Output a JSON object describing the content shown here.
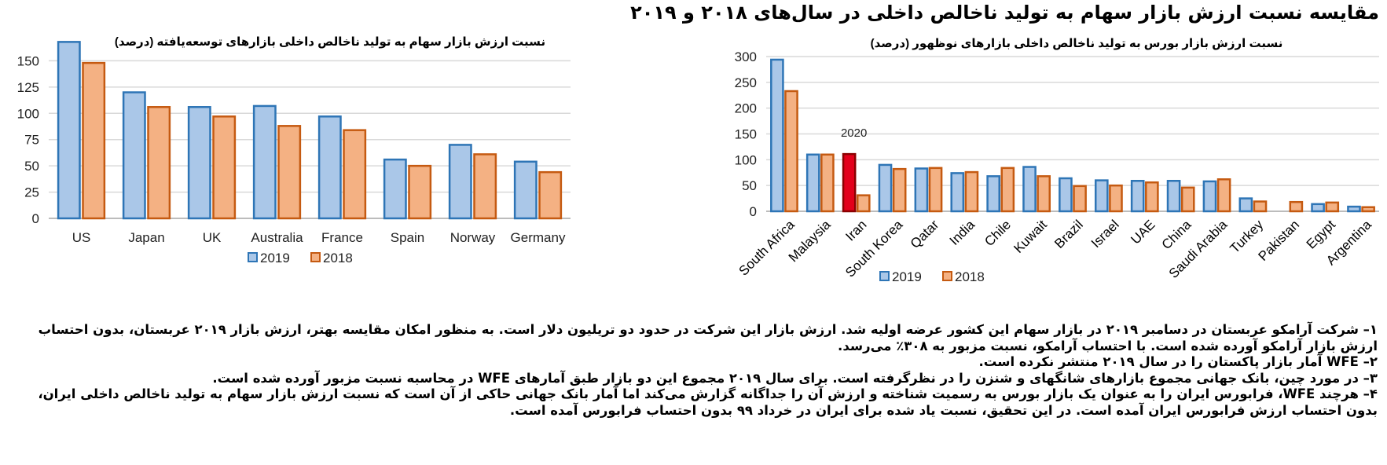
{
  "main_title": "مقایسه نسبت ارزش بازار سهام به تولید ناخالص داخلی در سال‌های ۲۰۱۸ و ۲۰۱۹",
  "colors": {
    "series_2019_fill": "#aac7e8",
    "series_2019_stroke": "#2e75b6",
    "series_2018_fill": "#f4b183",
    "series_2018_stroke": "#c55a11",
    "highlight_fill": "#e3001b",
    "highlight_stroke": "#8b0000",
    "grid": "#d9d9d9"
  },
  "chart_data": [
    {
      "type": "bar",
      "title": "نسبت ارزش بازار سهام به تولید ناخالص داخلی بازارهای توسعه‌یافته (درصد)",
      "categories": [
        "US",
        "Japan",
        "UK",
        "Australia",
        "France",
        "Spain",
        "Norway",
        "Germany"
      ],
      "series": [
        {
          "name": "2019",
          "values": [
            168,
            120,
            106,
            107,
            97,
            56,
            70,
            54
          ]
        },
        {
          "name": "2018",
          "values": [
            148,
            106,
            97,
            88,
            84,
            50,
            61,
            44
          ]
        }
      ],
      "ylim": [
        0,
        175
      ],
      "yticks": [
        0,
        25,
        50,
        75,
        100,
        125,
        150
      ],
      "grid": true,
      "legend_position": "bottom-center"
    },
    {
      "type": "bar",
      "title": "نسبت ارزش بازار بورس به تولید ناخالص داخلی بازارهای نوظهور (درصد)",
      "categories": [
        "South Africa",
        "Malaysia",
        "Iran",
        "South Korea",
        "Qatar",
        "India",
        "Chile",
        "Kuwait",
        "Brazil",
        "Israel",
        "UAE",
        "China",
        "Saudi Arabia",
        "Turkey",
        "Pakistan",
        "Egypt",
        "Argentina"
      ],
      "series": [
        {
          "name": "2019",
          "values": [
            294,
            110,
            111,
            90,
            83,
            74,
            68,
            86,
            64,
            60,
            59,
            59,
            58,
            25,
            null,
            14,
            9
          ]
        },
        {
          "name": "2018",
          "values": [
            233,
            110,
            31,
            82,
            84,
            76,
            84,
            68,
            49,
            50,
            56,
            46,
            62,
            19,
            18,
            17,
            8
          ]
        }
      ],
      "highlight": {
        "category": "Iran",
        "series": "2019",
        "label": "2020"
      },
      "ylim": [
        0,
        300
      ],
      "yticks": [
        0,
        50,
        100,
        150,
        200,
        250,
        300
      ],
      "grid": true,
      "legend_position": "bottom-center"
    }
  ],
  "notes": [
    "۱– شرکت آرامکو عربستان در دسامبر ۲۰۱۹ در بازار سهام این کشور عرضه اولیه شد. ارزش بازار این شرکت در حدود دو تریلیون دلار است. به منظور امکان مقایسه بهتر، ارزش بازار ۲۰۱۹ عربستان، بدون احتساب ارزش بازار آرامکو آورده شده است. با احتساب آرامکو، نسبت مزبور به ۳۰۸٪ می‌رسد.",
    "۲– WFE آمار بازار پاکستان را در سال ۲۰۱۹ منتشر نکرده است.",
    "۳– در مورد چین، بانک جهانی مجموع بازارهای شانگهای و شنزن را در نظرگرفته است. برای سال ۲۰۱۹ مجموع این دو بازار طبق آمارهای WFE در محاسبه نسبت مزبور آورده شده است.",
    "۴– هرچند WFE، فرابورس ایران را به عنوان یک بازار بورس به رسمیت شناخته و ارزش آن را جداگانه گزارش می‌کند اما آمار بانک جهانی حاکی از آن است که نسبت ارزش بازار سهام به تولید ناخالص داخلی ایران، بدون احتساب ارزش فرابورس ایران آمده است. در این تحقیق، نسبت یاد شده برای ایران در خرداد ۹۹ بدون احتساب فرابورس آمده است."
  ]
}
